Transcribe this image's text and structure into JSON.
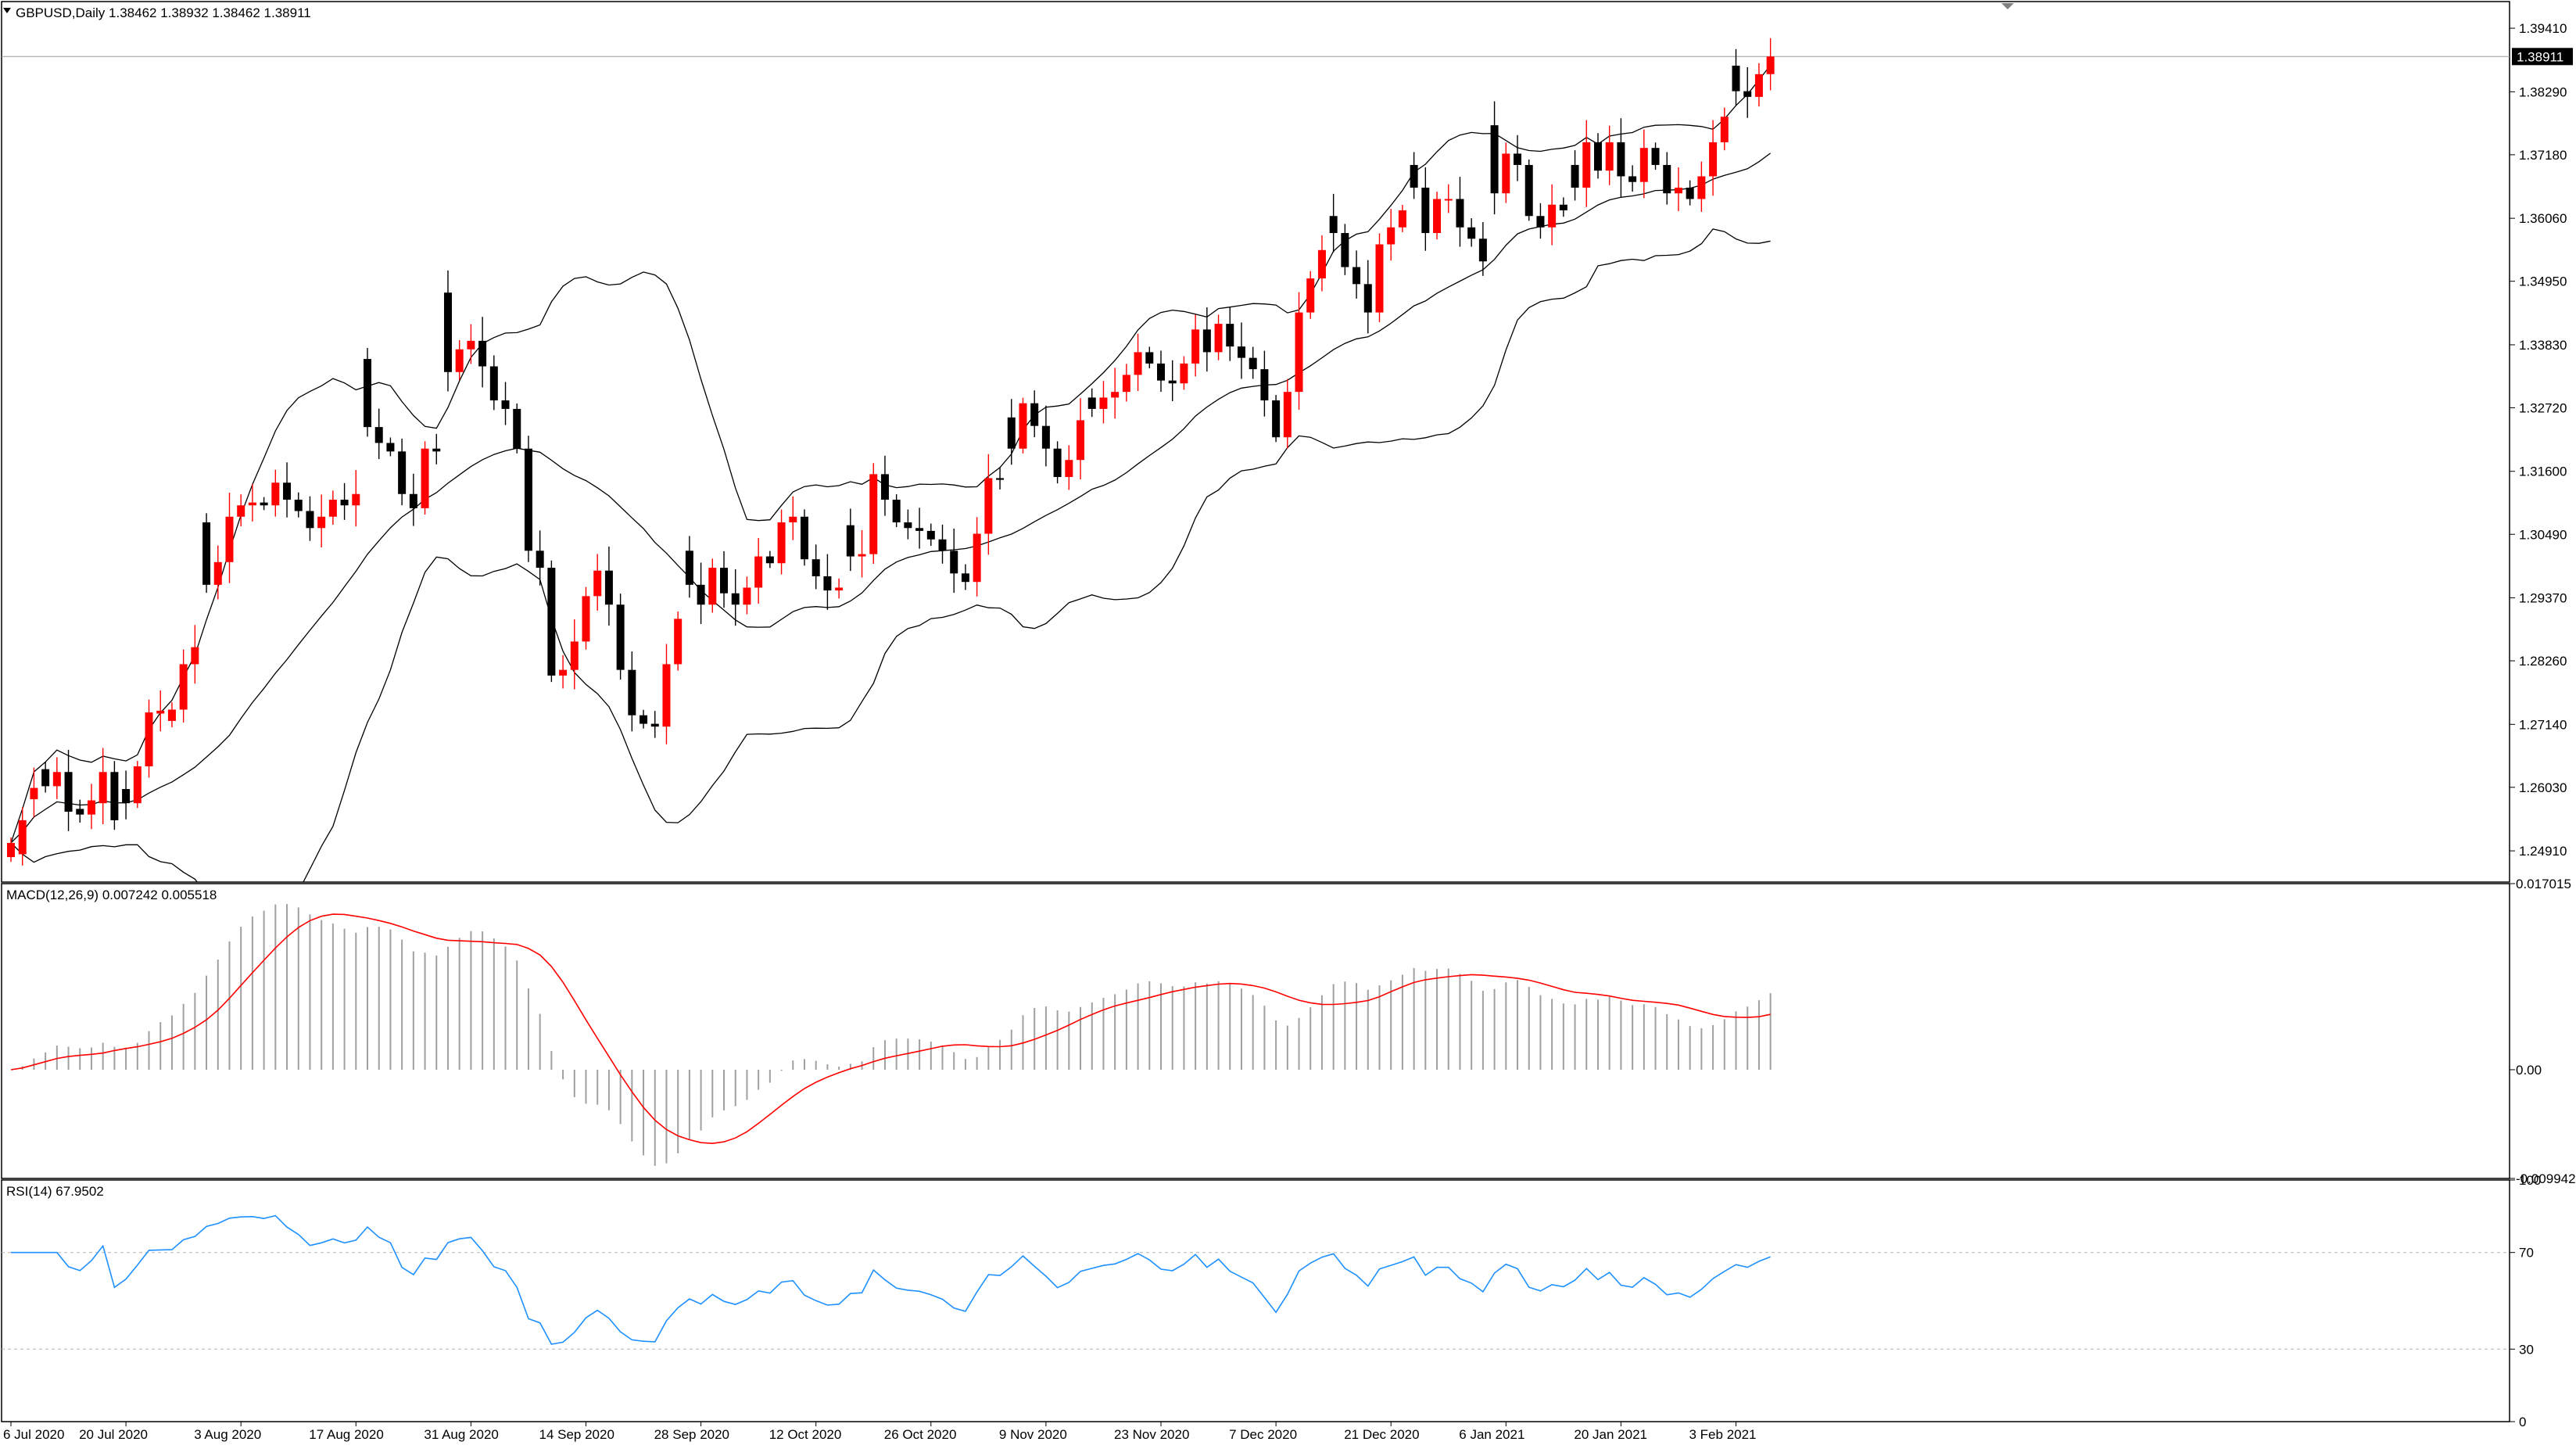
{
  "header": {
    "symbol_line": "GBPUSD,Daily  1.38462 1.38932 1.38462 1.38911",
    "price_badge": "1.38911"
  },
  "colors": {
    "bull": "#ff0000",
    "bear": "#000000",
    "band": "#000000",
    "macd_hist": "#a0a0a0",
    "macd_signal": "#ff0000",
    "rsi_line": "#1e90ff",
    "rsi_levels": "#b0b0b0"
  },
  "chart_data": [
    {
      "type": "candlestick",
      "title": "GBPUSD,Daily",
      "ohlc_header": "1.38462 1.38932 1.38462 1.38911",
      "price_axis_ticks": [
        "1.39410",
        "1.38290",
        "1.37180",
        "1.36060",
        "1.34950",
        "1.33830",
        "1.32720",
        "1.31600",
        "1.30490",
        "1.29370",
        "1.28260",
        "1.27140",
        "1.26030",
        "1.24910"
      ],
      "current_price": "1.38911",
      "ylim": [
        1.2436,
        1.3988
      ],
      "date_labels": [
        "6 Jul 2020",
        "20 Jul 2020",
        "3 Aug 2020",
        "17 Aug 2020",
        "31 Aug 2020",
        "14 Sep 2020",
        "28 Sep 2020",
        "12 Oct 2020",
        "26 Oct 2020",
        "9 Nov 2020",
        "23 Nov 2020",
        "7 Dec 2020",
        "21 Dec 2020",
        "6 Jan 2021",
        "20 Jan 2021",
        "3 Feb 2021"
      ],
      "date_label_bar_index": [
        0,
        10,
        20,
        30,
        40,
        50,
        60,
        70,
        80,
        90,
        100,
        110,
        120,
        130,
        140,
        150
      ],
      "overlays": [
        "Bollinger Bands (upper, middle, lower)"
      ],
      "close": [
        1.2505,
        1.2545,
        1.2602,
        1.2605,
        1.263,
        1.256,
        1.2555,
        1.258,
        1.263,
        1.2545,
        1.2575,
        1.264,
        1.2735,
        1.2738,
        1.274,
        1.282,
        1.285,
        1.296,
        1.3,
        1.308,
        1.31,
        1.3105,
        1.31,
        1.314,
        1.311,
        1.309,
        1.306,
        1.308,
        1.311,
        1.31,
        1.312,
        1.3238,
        1.321,
        1.3195,
        1.312,
        1.3095,
        1.32,
        1.3195,
        1.3335,
        1.3375,
        1.339,
        1.3345,
        1.3285,
        1.327,
        1.32,
        1.302,
        1.299,
        1.28,
        1.281,
        1.286,
        1.294,
        1.2985,
        1.2925,
        1.281,
        1.273,
        1.2715,
        1.271,
        1.282,
        1.29,
        1.296,
        1.2925,
        1.299,
        1.2945,
        1.2925,
        1.2955,
        1.301,
        1.2998,
        1.307,
        1.308,
        1.3005,
        1.2975,
        1.295,
        1.2955,
        1.301,
        1.3014,
        1.3155,
        1.311,
        1.307,
        1.306,
        1.3055,
        1.304,
        1.302,
        1.298,
        1.2965,
        1.305,
        1.3148,
        1.3145,
        1.32,
        1.328,
        1.324,
        1.32,
        1.315,
        1.318,
        1.325,
        1.327,
        1.329,
        1.33,
        1.333,
        1.337,
        1.335,
        1.332,
        1.3315,
        1.335,
        1.341,
        1.337,
        1.342,
        1.338,
        1.336,
        1.334,
        1.3285,
        1.322,
        1.33,
        1.344,
        1.35,
        1.355,
        1.358,
        1.352,
        1.349,
        1.344,
        1.356,
        1.359,
        1.362,
        1.366,
        1.358,
        1.364,
        1.364,
        1.359,
        1.357,
        1.353,
        1.365,
        1.372,
        1.37,
        1.361,
        1.359,
        1.363,
        1.362,
        1.366,
        1.374,
        1.369,
        1.374,
        1.368,
        1.367,
        1.373,
        1.37,
        1.365,
        1.366,
        1.364,
        1.368,
        1.374,
        1.3785,
        1.383,
        1.382,
        1.386,
        1.38911
      ],
      "body_size": [
        0.0025,
        0.006,
        0.002,
        0.003,
        0.0025,
        0.007,
        0.001,
        0.0025,
        0.0055,
        0.0085,
        0.0025,
        0.0065,
        0.0095,
        0.0005,
        0.002,
        0.008,
        0.003,
        0.011,
        0.004,
        0.008,
        0.002,
        0.0005,
        0.0005,
        0.004,
        0.003,
        0.002,
        0.003,
        0.002,
        0.003,
        0.001,
        0.002,
        0.012,
        0.0028,
        0.0015,
        0.0075,
        0.0025,
        0.0105,
        0.0005,
        0.014,
        0.004,
        0.0015,
        0.0045,
        0.006,
        0.0015,
        0.007,
        0.018,
        0.003,
        0.019,
        0.001,
        0.005,
        0.008,
        0.0045,
        0.006,
        0.0115,
        0.008,
        0.0015,
        0.0005,
        0.011,
        0.008,
        0.006,
        0.0035,
        0.0065,
        0.0045,
        0.002,
        0.003,
        0.0055,
        0.0012,
        0.0072,
        0.001,
        0.0075,
        0.003,
        0.0025,
        0.0005,
        0.0055,
        0.0004,
        0.0141,
        0.0045,
        0.004,
        0.001,
        0.0005,
        0.0015,
        0.002,
        0.004,
        0.0015,
        0.0085,
        0.0098,
        0.0003,
        0.0055,
        0.008,
        0.004,
        0.004,
        0.005,
        0.003,
        0.007,
        0.002,
        0.002,
        0.001,
        0.003,
        0.004,
        0.002,
        0.003,
        0.0005,
        0.0035,
        0.006,
        0.004,
        0.005,
        0.004,
        0.002,
        0.002,
        0.0055,
        0.0065,
        0.008,
        0.014,
        0.006,
        0.005,
        0.003,
        0.006,
        0.003,
        0.005,
        0.012,
        0.003,
        0.003,
        0.004,
        0.008,
        0.006,
        0.0002,
        0.005,
        0.002,
        0.004,
        0.012,
        0.007,
        0.002,
        0.009,
        0.002,
        0.004,
        0.001,
        0.004,
        0.008,
        0.005,
        0.005,
        0.006,
        0.001,
        0.006,
        0.003,
        0.005,
        0.001,
        0.002,
        0.004,
        0.006,
        0.0045,
        0.0045,
        0.001,
        0.004,
        0.0031
      ]
    },
    {
      "type": "bar",
      "title": "MACD(12,26,9) 0.007242 0.005518",
      "ylim": [
        -0.009942,
        0.017015
      ],
      "axis_ticks": [
        "0.017015",
        "0.00",
        "-0.009942"
      ],
      "series_names": [
        "MACD histogram",
        "Signal"
      ]
    },
    {
      "type": "line",
      "title": "RSI(14) 67.9502",
      "ylim": [
        0,
        100
      ],
      "axis_ticks": [
        "100",
        "70",
        "30",
        "0"
      ],
      "levels": [
        70,
        30
      ]
    }
  ]
}
